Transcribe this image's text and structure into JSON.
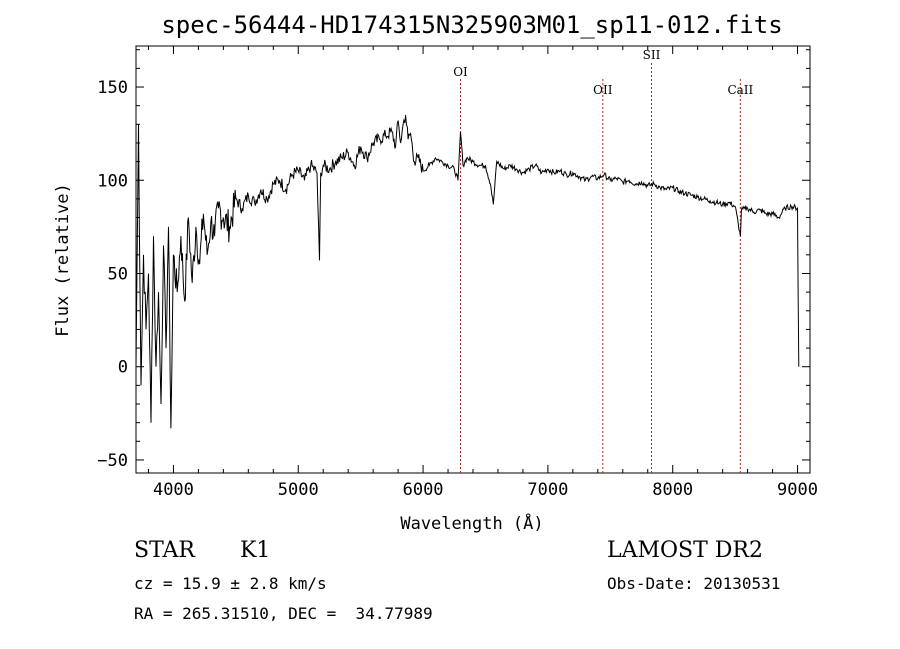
{
  "chart_data": {
    "type": "line",
    "title": "spec-56444-HD174315N325903M01_sp11-012.fits",
    "xlabel": "Wavelength (Å)",
    "ylabel": "Flux (relative)",
    "xlim": [
      3700,
      9100
    ],
    "ylim": [
      -57,
      172
    ],
    "x_ticks": [
      4000,
      5000,
      6000,
      7000,
      8000,
      9000
    ],
    "y_ticks": [
      -50,
      0,
      50,
      100,
      150
    ],
    "grid": false,
    "series": [
      {
        "values_x": [
          3700,
          3720,
          3740,
          3760,
          3780,
          3800,
          3820,
          3840,
          3860,
          3880,
          3900,
          3920,
          3940,
          3960,
          3980,
          4000,
          4030,
          4060,
          4090,
          4120,
          4150,
          4180,
          4210,
          4240,
          4270,
          4300,
          4330,
          4360,
          4400,
          4450,
          4500,
          4550,
          4600,
          4650,
          4700,
          4750,
          4800,
          4850,
          4900,
          4950,
          5000,
          5050,
          5100,
          5150,
          5170,
          5180,
          5200,
          5250,
          5300,
          5350,
          5400,
          5450,
          5500,
          5550,
          5600,
          5650,
          5700,
          5750,
          5780,
          5800,
          5820,
          5840,
          5860,
          5880,
          5900,
          5930,
          5960,
          6000,
          6050,
          6100,
          6150,
          6200,
          6250,
          6280,
          6300,
          6320,
          6350,
          6400,
          6450,
          6500,
          6540,
          6563,
          6590,
          6650,
          6700,
          6750,
          6800,
          6850,
          6900,
          6950,
          7000,
          7050,
          7100,
          7150,
          7200,
          7250,
          7300,
          7350,
          7400,
          7450,
          7500,
          7550,
          7600,
          7650,
          7700,
          7750,
          7800,
          7850,
          7900,
          7950,
          8000,
          8050,
          8100,
          8150,
          8200,
          8250,
          8300,
          8350,
          8400,
          8450,
          8500,
          8542,
          8550,
          8600,
          8650,
          8700,
          8750,
          8800,
          8850,
          8900,
          8950,
          9000,
          9010
        ],
        "values_y": [
          0,
          130,
          -10,
          60,
          20,
          50,
          -30,
          70,
          0,
          40,
          -20,
          65,
          10,
          75,
          -33,
          60,
          40,
          70,
          35,
          80,
          45,
          75,
          55,
          82,
          60,
          78,
          70,
          85,
          80,
          75,
          90,
          85,
          92,
          88,
          95,
          90,
          98,
          100,
          95,
          103,
          105,
          100,
          108,
          104,
          57,
          104,
          108,
          106,
          110,
          112,
          115,
          108,
          118,
          112,
          120,
          122,
          124,
          126,
          118,
          132,
          120,
          130,
          135,
          122,
          125,
          110,
          112,
          105,
          108,
          112,
          110,
          108,
          106,
          100,
          126,
          108,
          112,
          110,
          108,
          108,
          98,
          87,
          110,
          106,
          108,
          106,
          104,
          106,
          108,
          104,
          106,
          104,
          105,
          103,
          104,
          102,
          100,
          102,
          101,
          103,
          100,
          101,
          99,
          100,
          98,
          99,
          97,
          98,
          96,
          95,
          96,
          94,
          93,
          92,
          91,
          90,
          89,
          88,
          87,
          88,
          86,
          70,
          84,
          85,
          83,
          84,
          82,
          82,
          80,
          85,
          86,
          85,
          0
        ]
      }
    ],
    "spectral_lines": [
      {
        "label": "OI",
        "x": 6300
      },
      {
        "label": "OII",
        "x": 7440
      },
      {
        "label": "SII",
        "x": 7830
      },
      {
        "label": "CaII",
        "x": 8542
      }
    ]
  },
  "info": {
    "class_label": "STAR",
    "subclass_label": "K1",
    "survey": "LAMOST DR2",
    "cz": "cz = 15.9 ± 2.8 km/s",
    "obs_date": "Obs-Date: 20130531",
    "coords": "RA = 265.31510, DEC =  34.77989"
  },
  "colors": {
    "spectrum": "#000000",
    "line_markers": "#b22222"
  }
}
